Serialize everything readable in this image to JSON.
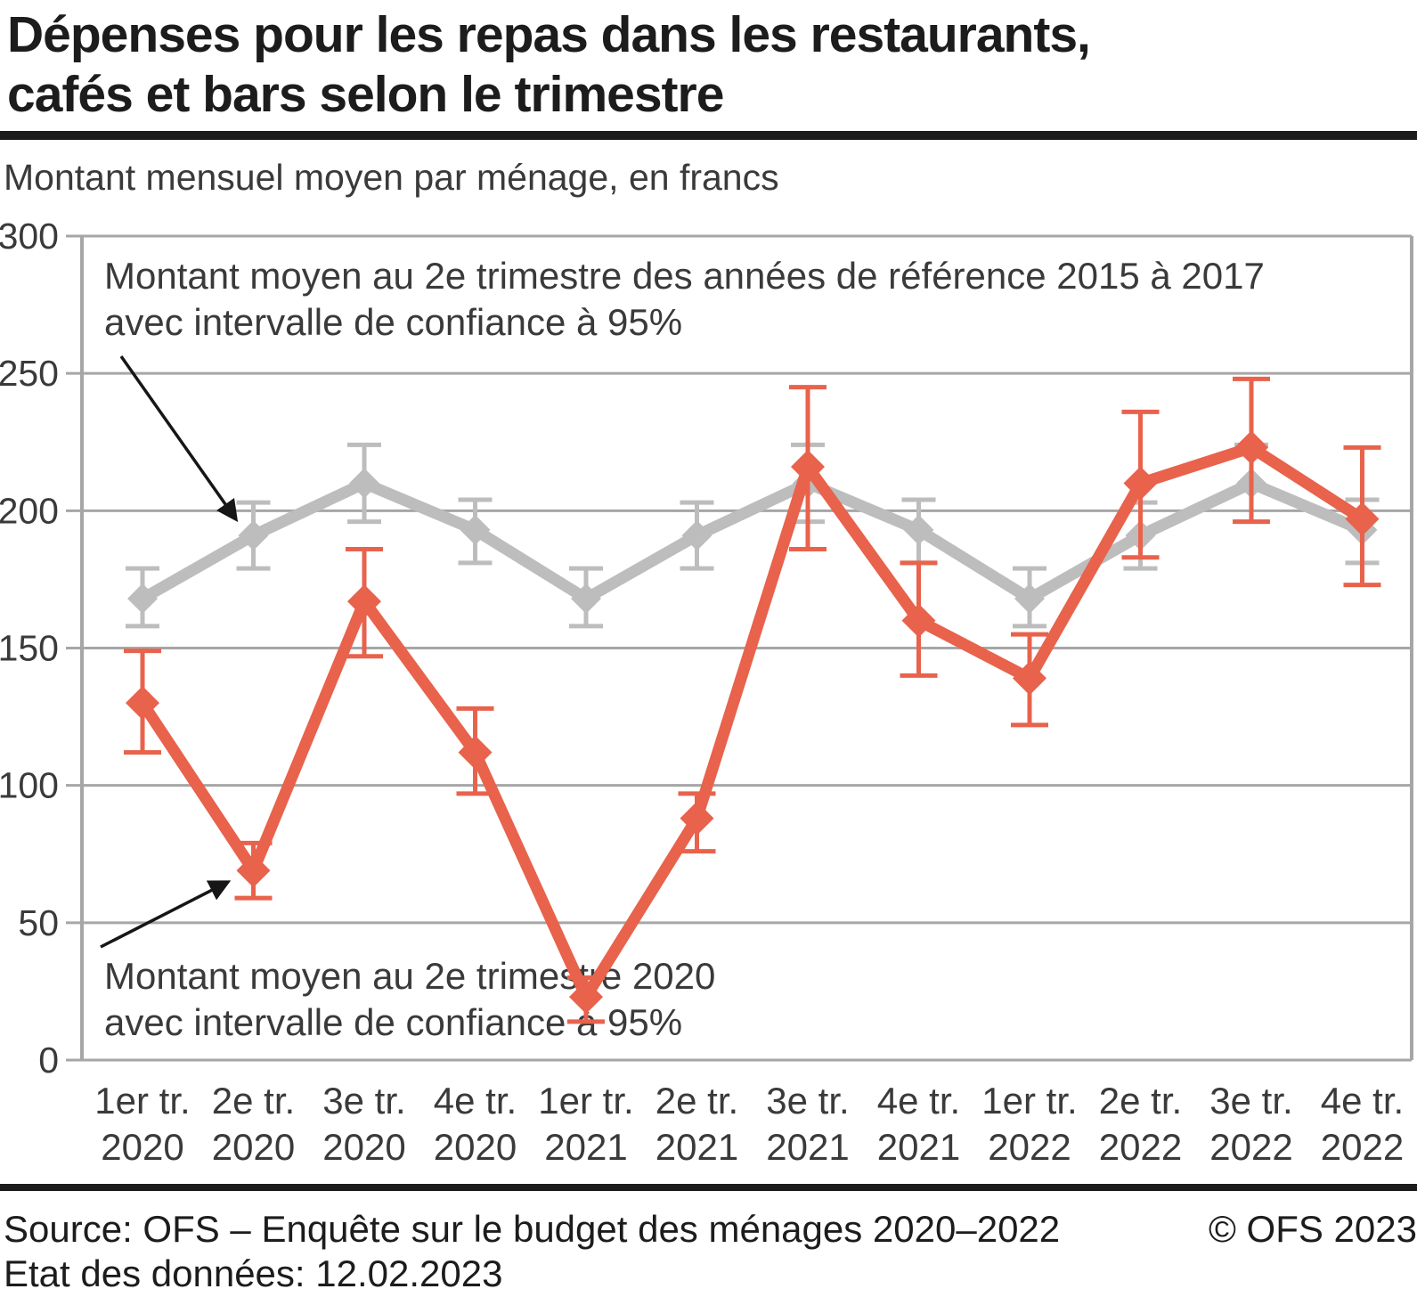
{
  "header": {
    "title_line1": "Dépenses pour les repas dans les restaurants,",
    "title_line2": "cafés et bars selon le trimestre",
    "subtitle": "Montant mensuel moyen par ménage, en francs"
  },
  "chart_data": {
    "type": "line",
    "ylim": [
      0,
      300
    ],
    "y_ticks": [
      300,
      250,
      200,
      150,
      100,
      50,
      0
    ],
    "grid": true,
    "grid_color": "#A6A6A6",
    "categories": [
      {
        "q": "1er tr.",
        "y": "2020"
      },
      {
        "q": "2e tr.",
        "y": "2020"
      },
      {
        "q": "3e tr.",
        "y": "2020"
      },
      {
        "q": "4e tr.",
        "y": "2020"
      },
      {
        "q": "1er tr.",
        "y": "2021"
      },
      {
        "q": "2e tr.",
        "y": "2021"
      },
      {
        "q": "3e tr.",
        "y": "2021"
      },
      {
        "q": "4e tr.",
        "y": "2021"
      },
      {
        "q": "1er tr.",
        "y": "2022"
      },
      {
        "q": "2e tr.",
        "y": "2022"
      },
      {
        "q": "3e tr.",
        "y": "2022"
      },
      {
        "q": "4e tr.",
        "y": "2022"
      }
    ],
    "series": [
      {
        "name": "Montant moyen par trimestre des années de référence 2015 à 2017 avec intervalle de confiance à 95%",
        "color": "#BDBDBD",
        "values": [
          168,
          191,
          210,
          193,
          168,
          191,
          210,
          193,
          168,
          191,
          210,
          193
        ],
        "ci_low": [
          158,
          179,
          196,
          181,
          158,
          179,
          196,
          181,
          158,
          179,
          196,
          181
        ],
        "ci_high": [
          179,
          203,
          224,
          204,
          179,
          203,
          224,
          204,
          179,
          203,
          224,
          204
        ]
      },
      {
        "name": "Montant moyen par trimestre 2020–2022 avec intervalle de confiance à 95%",
        "color": "#E8624C",
        "values": [
          130,
          69,
          167,
          112,
          23,
          88,
          216,
          160,
          139,
          210,
          223,
          197
        ],
        "ci_low": [
          112,
          59,
          147,
          97,
          14,
          76,
          186,
          140,
          122,
          183,
          196,
          173
        ],
        "ci_high": [
          149,
          79,
          186,
          128,
          30,
          97,
          245,
          181,
          155,
          236,
          248,
          223
        ]
      }
    ]
  },
  "annotations": [
    {
      "line1": "Montant moyen au 2e trimestre des années de référence 2015 à 2017",
      "line2": "avec intervalle de confiance à 95%"
    },
    {
      "line1": "Montant moyen au 2e trimestre 2020",
      "line2": "avec intervalle de confiance à 95%"
    }
  ],
  "footer": {
    "source": "Source: OFS – Enquête sur le budget des ménages 2020–2022",
    "copyright": "© OFS 2023",
    "state": "Etat des données: 12.02.2023"
  }
}
